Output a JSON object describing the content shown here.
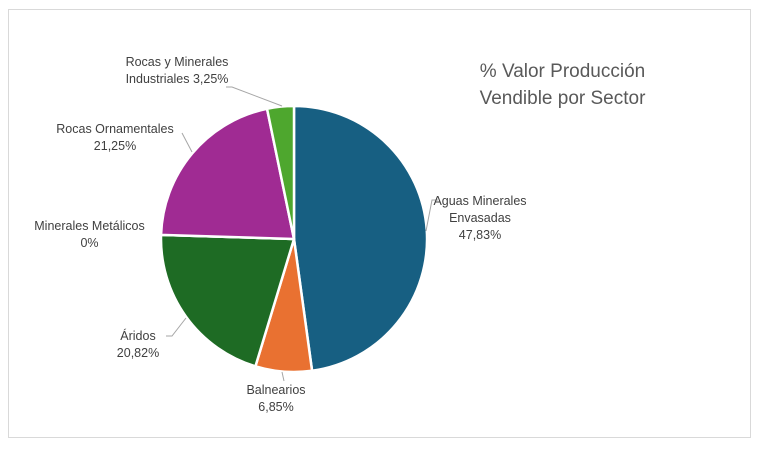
{
  "chart_data": {
    "type": "pie",
    "title_line1": "%  Valor Producción",
    "title_line2": "Vendible por Sector",
    "slices": [
      {
        "name": "Aguas Minerales Envasadas",
        "name_line1": "Aguas Minerales",
        "name_line2": "Envasadas",
        "value": 47.83,
        "value_label": "47,83%",
        "color": "#175F82"
      },
      {
        "name": "Balnearios",
        "value": 6.85,
        "value_label": "6,85%",
        "color": "#E97131"
      },
      {
        "name": "Áridos",
        "value": 20.82,
        "value_label": "20,82%",
        "color": "#1E6B24"
      },
      {
        "name": "Minerales Metálicos",
        "value": 0,
        "value_label": "0%",
        "color": "#0F9ED5"
      },
      {
        "name": "Rocas Ornamentales",
        "value": 21.25,
        "value_label": "21,25%",
        "color": "#A02B93"
      },
      {
        "name": "Rocas y Minerales Industriales",
        "name_line1": "Rocas y Minerales",
        "name_line2": "Industriales 3,25%",
        "value": 3.25,
        "value_label": "3,25%",
        "color": "#4EA72E"
      }
    ]
  }
}
